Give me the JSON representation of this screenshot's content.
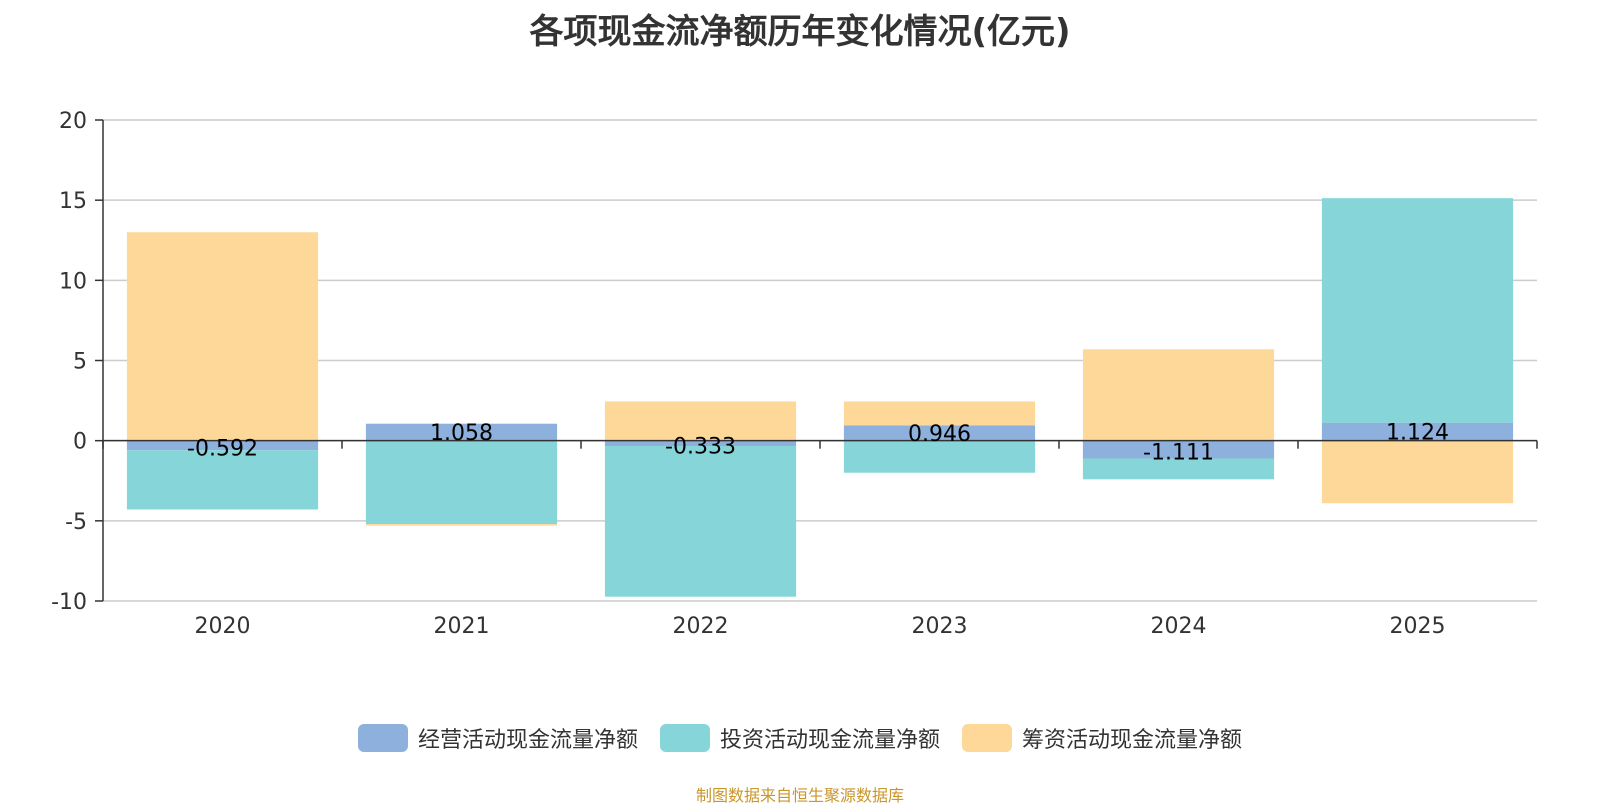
{
  "title": "各项现金流净额历年变化情况(亿元)",
  "source_note": "制图数据来自恒生聚源数据库",
  "colors": {
    "operating": "#8eb0dc",
    "investing": "#86d5d8",
    "financing": "#fdd899",
    "grid": "#cccccc",
    "axis": "#333333",
    "text": "#333333"
  },
  "chart_data": {
    "type": "bar",
    "stacked": true,
    "categories": [
      "2020",
      "2021",
      "2022",
      "2023",
      "2024",
      "2025"
    ],
    "series": [
      {
        "name": "经营活动现金流量净额",
        "values": [
          -0.592,
          1.058,
          -0.333,
          0.946,
          -1.111,
          1.124
        ],
        "labels": [
          "-0.592",
          "1.058",
          "-0.333",
          "0.946",
          "-1.111",
          "1.124"
        ]
      },
      {
        "name": "投资活动现金流量净额",
        "values": [
          -3.7,
          -5.2,
          -9.4,
          -2.0,
          -1.3,
          14.0
        ]
      },
      {
        "name": "筹资活动现金流量净额",
        "values": [
          13.0,
          -0.1,
          2.45,
          1.5,
          5.7,
          -3.9
        ]
      }
    ],
    "ylim": [
      -10,
      20
    ],
    "yticks": [
      -10,
      -5,
      0,
      5,
      10,
      15,
      20
    ],
    "grid": true,
    "legend_position": "bottom"
  },
  "legend": {
    "items": [
      {
        "label": "经营活动现金流量净额"
      },
      {
        "label": "投资活动现金流量净额"
      },
      {
        "label": "筹资活动现金流量净额"
      }
    ]
  }
}
